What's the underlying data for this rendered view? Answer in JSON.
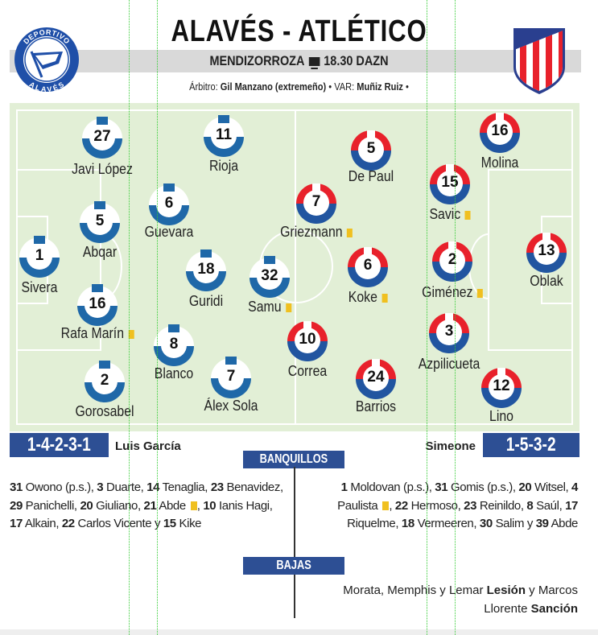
{
  "header": {
    "title": "ALAVÉS - ATLÉTICO",
    "venue": "MENDIZORROZA",
    "tv_icon": "tv-icon",
    "time_channel": "18.30 DAZN",
    "referee_label": "Árbitro:",
    "referee": "Gil Manzano (extremeño)",
    "var_label": "VAR:",
    "var": "Muñiz Ruiz"
  },
  "colors": {
    "alaves_blue": "#1f68a8",
    "atletico_red": "#e8212b",
    "atletico_blue": "#2155a0",
    "banner_blue": "#2d4f94",
    "pitch": "#e2efd6",
    "card_yellow": "#f0c020"
  },
  "home": {
    "crest_text_top": "DEPORTIVO",
    "crest_text_bottom": "ALAVÉS",
    "formation": "1-4-2-3-1",
    "coach": "Luis García",
    "players": [
      {
        "num": "27",
        "name": "Javi López",
        "card": false
      },
      {
        "num": "11",
        "name": "Rioja",
        "card": false
      },
      {
        "num": "6",
        "name": "Guevara",
        "card": false
      },
      {
        "num": "5",
        "name": "Abqar",
        "card": false
      },
      {
        "num": "1",
        "name": "Sivera",
        "card": false
      },
      {
        "num": "18",
        "name": "Guridi",
        "card": false
      },
      {
        "num": "32",
        "name": "Samu",
        "card": true
      },
      {
        "num": "16",
        "name": "Rafa Marín",
        "card": true
      },
      {
        "num": "8",
        "name": "Blanco",
        "card": false
      },
      {
        "num": "2",
        "name": "Gorosabel",
        "card": false
      },
      {
        "num": "7",
        "name": "Álex Sola",
        "card": false
      }
    ],
    "bench": [
      {
        "num": "31",
        "name": "Owono (p.s.)"
      },
      {
        "num": "3",
        "name": "Duarte"
      },
      {
        "num": "14",
        "name": "Tenaglia"
      },
      {
        "num": "23",
        "name": "Benavidez"
      },
      {
        "num": "29",
        "name": "Panichelli"
      },
      {
        "num": "20",
        "name": "Giuliano"
      },
      {
        "num": "21",
        "name": "Abde",
        "card": true
      },
      {
        "num": "10",
        "name": "Ianis Hagi"
      },
      {
        "num": "17",
        "name": "Alkain"
      },
      {
        "num": "22",
        "name": "Carlos Vicente"
      },
      {
        "num": "15",
        "name": "Kike"
      }
    ]
  },
  "away": {
    "formation": "1-5-3-2",
    "coach": "Simeone",
    "players": [
      {
        "num": "16",
        "name": "Molina",
        "card": false
      },
      {
        "num": "5",
        "name": "De Paul",
        "card": false
      },
      {
        "num": "15",
        "name": "Savic",
        "card": true
      },
      {
        "num": "7",
        "name": "Griezmann",
        "card": true
      },
      {
        "num": "13",
        "name": "Oblak",
        "card": false
      },
      {
        "num": "6",
        "name": "Koke",
        "card": true
      },
      {
        "num": "2",
        "name": "Giménez",
        "card": true
      },
      {
        "num": "10",
        "name": "Correa",
        "card": false
      },
      {
        "num": "3",
        "name": "Azpilicueta",
        "card": false
      },
      {
        "num": "24",
        "name": "Barrios",
        "card": false
      },
      {
        "num": "12",
        "name": "Lino",
        "card": false
      }
    ],
    "bench": [
      {
        "num": "1",
        "name": "Moldovan (p.s.)"
      },
      {
        "num": "31",
        "name": "Gomis (p.s.)"
      },
      {
        "num": "20",
        "name": "Witsel"
      },
      {
        "num": "4",
        "name": "Paulista",
        "card": true
      },
      {
        "num": "22",
        "name": "Hermoso"
      },
      {
        "num": "23",
        "name": "Reinildo"
      },
      {
        "num": "8",
        "name": "Saúl"
      },
      {
        "num": "17",
        "name": "Riquelme"
      },
      {
        "num": "18",
        "name": "Vermeeren"
      },
      {
        "num": "30",
        "name": "Salim"
      },
      {
        "num": "39",
        "name": "Abde"
      }
    ]
  },
  "sections": {
    "bench_title": "BANQUILLOS",
    "absences_title": "BAJAS"
  },
  "absences": {
    "text1": "Morata, Memphis y Lemar",
    "reason1": "Lesión",
    "joiner": "y Marcos Llorente",
    "reason2": "Sanción"
  }
}
